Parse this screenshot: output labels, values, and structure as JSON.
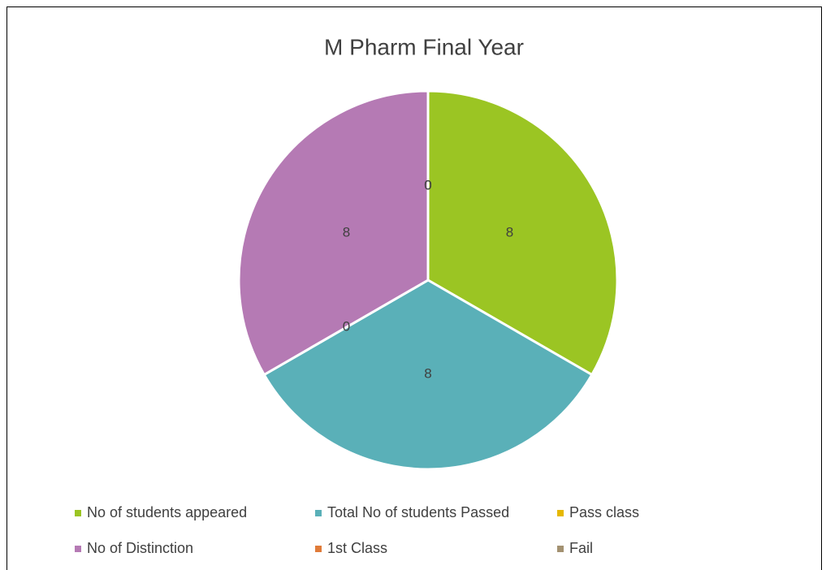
{
  "chart_data": {
    "type": "pie",
    "title": "M Pharm Final Year",
    "categories": [
      "No of students appeared",
      "Total No of students Passed",
      "Pass class",
      "No of Distinction",
      "1st Class",
      "Fail"
    ],
    "values": [
      8,
      8,
      0,
      8,
      0,
      0
    ],
    "colors": [
      "#9bc523",
      "#5ab0b8",
      "#e6b800",
      "#b57ab4",
      "#e07b39",
      "#a39171"
    ],
    "legend": "bottom"
  }
}
